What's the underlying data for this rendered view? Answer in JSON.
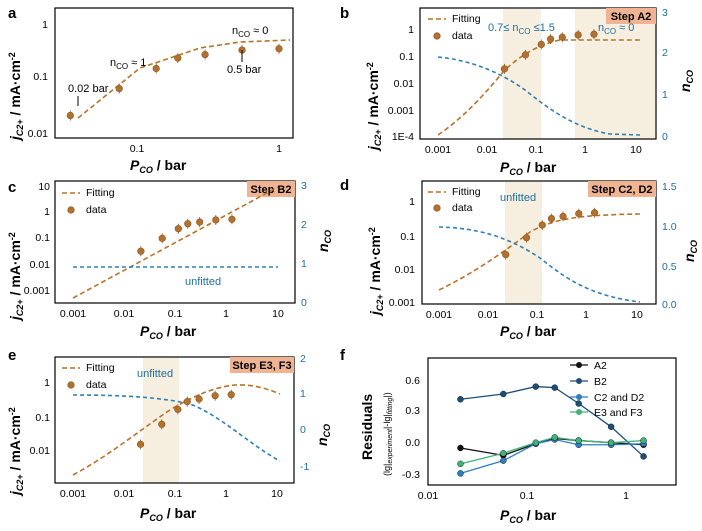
{
  "colors": {
    "fitting": "#b8732a",
    "data": "#b3712e",
    "n_axis": "#1f6f9a",
    "band": "#f4ead7",
    "step_badge": "#f0b493"
  },
  "panels": {
    "a": {
      "label": "a",
      "ylabel": "j",
      "ylabel_sub": "C2+",
      "ylabel_rest": " / mA·cm",
      "ylabel_sup": "-2",
      "xlabel_p": "P",
      "xlabel_sub": "CO",
      "xlabel_rest": " / bar",
      "yticks": [
        "1",
        "0.1",
        "0.01"
      ],
      "xticks": [
        "0.1",
        "1"
      ],
      "annotations": {
        "low": "0.02 bar",
        "mid": "n",
        "mid_sub": "CO",
        "mid_rest": " ≈ 1",
        "high_n": "n",
        "high_sub": "CO",
        "high_rest": " ≈ 0",
        "high_bar": "0.5 bar"
      }
    },
    "b": {
      "label": "b",
      "step": "Step A2",
      "legend": [
        "Fitting",
        "data"
      ],
      "band_note": "0.7≤ n",
      "band_note_sub": "CO",
      "band_note_rest": " ≤1.5",
      "right_note": "n",
      "right_note_sub": "CO",
      "right_note_rest": " ≈ 0",
      "yticks": [
        "1",
        "0.1",
        "0.01",
        "0.001",
        "1E-4"
      ],
      "xticks": [
        "0.001",
        "0.01",
        "0.1",
        "1",
        "10"
      ],
      "rticks": [
        "0",
        "1",
        "2",
        "3"
      ],
      "rlabel": "n",
      "rlabel_sub": "CO"
    },
    "c": {
      "label": "c",
      "step": "Step B2",
      "legend": [
        "Fitting",
        "data"
      ],
      "note": "unfitted",
      "yticks": [
        "10",
        "1",
        "0.1",
        "0.01",
        "0.001"
      ],
      "xticks": [
        "0.001",
        "0.01",
        "0.1",
        "1",
        "10"
      ],
      "rticks": [
        "0",
        "1",
        "2",
        "3"
      ],
      "rlabel": "n",
      "rlabel_sub": "CO"
    },
    "d": {
      "label": "d",
      "step": "Step C2, D2",
      "legend": [
        "Fitting",
        "data"
      ],
      "note": "unfitted",
      "yticks": [
        "1",
        "0.1",
        "0.01",
        "0.001"
      ],
      "xticks": [
        "0.001",
        "0.01",
        "0.1",
        "1",
        "10"
      ],
      "rticks": [
        "0.0",
        "0.5",
        "1.0",
        "1.5"
      ],
      "rlabel": "n",
      "rlabel_sub": "CO"
    },
    "e": {
      "label": "e",
      "step": "Step E3, F3",
      "legend": [
        "Fitting",
        "data"
      ],
      "note": "unfitted",
      "yticks": [
        "1",
        "0.1",
        "0.01"
      ],
      "xticks": [
        "0.001",
        "0.01",
        "0.1",
        "1",
        "10"
      ],
      "rticks": [
        "-1",
        "0",
        "1",
        "2"
      ],
      "rlabel": "n",
      "rlabel_sub": "CO"
    },
    "f": {
      "label": "f",
      "ylabel": "Residuals",
      "ysub": "(lg|",
      "ysub2": "experiment",
      "ysub3": "|-lg|",
      "ysub4": "fitting",
      "ysub5": "|)",
      "yticks": [
        "0.6",
        "0.3",
        "0.0",
        "-0.3"
      ],
      "xticks": [
        "0.01",
        "0.1",
        "1"
      ],
      "legend": [
        "A2",
        "B2",
        "C2 and D2",
        "E3 and F3"
      ]
    }
  },
  "chart_data": [
    {
      "panel": "a",
      "type": "scatter",
      "x": [
        0.02,
        0.05,
        0.1,
        0.15,
        0.25,
        0.5,
        1.0
      ],
      "y": [
        0.025,
        0.075,
        0.17,
        0.26,
        0.3,
        0.36,
        0.38
      ],
      "fit_type": "line",
      "xlim": [
        0.015,
        1.3
      ],
      "ylim": [
        0.01,
        2
      ]
    },
    {
      "panel": "b",
      "type": "scatter",
      "x": [
        0.02,
        0.05,
        0.1,
        0.15,
        0.25,
        0.5,
        1.0
      ],
      "y": [
        0.025,
        0.075,
        0.17,
        0.26,
        0.3,
        0.36,
        0.38
      ],
      "n_curve": "decreasing",
      "xlim": [
        0.0005,
        15
      ],
      "ylim": [
        0.0001,
        3
      ]
    },
    {
      "panel": "c",
      "type": "scatter",
      "x": [
        0.02,
        0.05,
        0.1,
        0.15,
        0.25,
        0.5,
        1.0
      ],
      "y": [
        0.025,
        0.075,
        0.17,
        0.26,
        0.3,
        0.36,
        0.38
      ],
      "n_value": 1,
      "xlim": [
        0.0005,
        15
      ],
      "ylim": [
        0.0003,
        10
      ]
    },
    {
      "panel": "d",
      "type": "scatter",
      "x": [
        0.02,
        0.05,
        0.1,
        0.15,
        0.25,
        0.5,
        1.0
      ],
      "y": [
        0.025,
        0.075,
        0.17,
        0.26,
        0.3,
        0.36,
        0.38
      ],
      "xlim": [
        0.0005,
        15
      ],
      "ylim": [
        0.001,
        3
      ]
    },
    {
      "panel": "e",
      "type": "scatter",
      "x": [
        0.02,
        0.05,
        0.1,
        0.15,
        0.25,
        0.5,
        1.0
      ],
      "y": [
        0.025,
        0.075,
        0.17,
        0.26,
        0.3,
        0.36,
        0.38
      ],
      "xlim": [
        0.0005,
        15
      ],
      "ylim": [
        0.003,
        3
      ]
    },
    {
      "panel": "f",
      "type": "line",
      "x": [
        0.02,
        0.05,
        0.1,
        0.15,
        0.25,
        0.5,
        1.0
      ],
      "series": [
        {
          "name": "A2",
          "values": [
            -0.05,
            -0.12,
            -0.01,
            0.04,
            0.02,
            0.0,
            -0.02
          ],
          "color": "#111111"
        },
        {
          "name": "B2",
          "values": [
            0.41,
            0.46,
            0.53,
            0.52,
            0.37,
            0.15,
            -0.13
          ],
          "color": "#1b4f7a"
        },
        {
          "name": "C2 and D2",
          "values": [
            -0.29,
            -0.17,
            -0.01,
            0.03,
            -0.02,
            -0.02,
            -0.01
          ],
          "color": "#2f7fc0"
        },
        {
          "name": "E3 and F3",
          "values": [
            -0.2,
            -0.1,
            0.0,
            0.05,
            0.02,
            0.0,
            0.02
          ],
          "color": "#3fb37a"
        }
      ],
      "xlim": [
        0.01,
        2
      ],
      "ylim": [
        -0.4,
        0.8
      ]
    }
  ]
}
